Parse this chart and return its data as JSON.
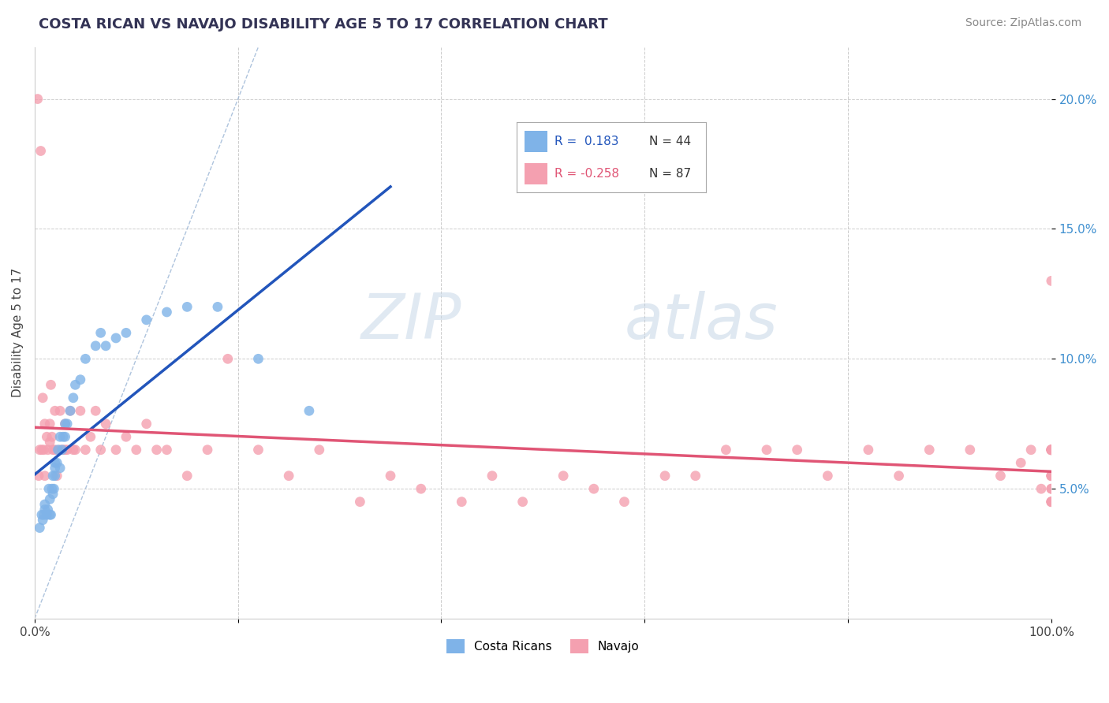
{
  "title": "COSTA RICAN VS NAVAJO DISABILITY AGE 5 TO 17 CORRELATION CHART",
  "source": "Source: ZipAtlas.com",
  "ylabel": "Disability Age 5 to 17",
  "xlim": [
    0.0,
    1.0
  ],
  "ylim": [
    0.0,
    0.22
  ],
  "cr_color": "#7fb3e8",
  "navajo_color": "#f4a0b0",
  "cr_line_color": "#2255bb",
  "navajo_line_color": "#e05575",
  "diagonal_color": "#9ab5d5",
  "watermark_zip": "ZIP",
  "watermark_atlas": "atlas",
  "legend_r1_val": "0.183",
  "legend_n1": "44",
  "legend_r2_val": "-0.258",
  "legend_n2": "87",
  "costa_ricans_x": [
    0.005,
    0.007,
    0.008,
    0.009,
    0.01,
    0.01,
    0.012,
    0.013,
    0.014,
    0.015,
    0.015,
    0.016,
    0.017,
    0.018,
    0.018,
    0.019,
    0.02,
    0.02,
    0.02,
    0.022,
    0.023,
    0.025,
    0.025,
    0.027,
    0.028,
    0.03,
    0.03,
    0.032,
    0.035,
    0.038,
    0.04,
    0.045,
    0.05,
    0.06,
    0.065,
    0.07,
    0.08,
    0.09,
    0.11,
    0.13,
    0.15,
    0.18,
    0.22,
    0.27
  ],
  "costa_ricans_y": [
    0.035,
    0.04,
    0.038,
    0.04,
    0.042,
    0.044,
    0.04,
    0.042,
    0.05,
    0.04,
    0.046,
    0.04,
    0.05,
    0.048,
    0.055,
    0.05,
    0.055,
    0.06,
    0.058,
    0.06,
    0.065,
    0.058,
    0.07,
    0.065,
    0.07,
    0.07,
    0.075,
    0.075,
    0.08,
    0.085,
    0.09,
    0.092,
    0.1,
    0.105,
    0.11,
    0.105,
    0.108,
    0.11,
    0.115,
    0.118,
    0.12,
    0.12,
    0.1,
    0.08
  ],
  "navajo_x": [
    0.003,
    0.004,
    0.005,
    0.006,
    0.007,
    0.008,
    0.009,
    0.01,
    0.01,
    0.012,
    0.013,
    0.015,
    0.015,
    0.016,
    0.017,
    0.018,
    0.02,
    0.02,
    0.022,
    0.025,
    0.025,
    0.028,
    0.03,
    0.03,
    0.032,
    0.035,
    0.038,
    0.04,
    0.045,
    0.05,
    0.055,
    0.06,
    0.065,
    0.07,
    0.08,
    0.09,
    0.1,
    0.11,
    0.12,
    0.13,
    0.15,
    0.17,
    0.19,
    0.22,
    0.25,
    0.28,
    0.32,
    0.35,
    0.38,
    0.42,
    0.45,
    0.48,
    0.52,
    0.55,
    0.58,
    0.62,
    0.65,
    0.68,
    0.72,
    0.75,
    0.78,
    0.82,
    0.85,
    0.88,
    0.92,
    0.95,
    0.97,
    0.98,
    0.99,
    1.0,
    1.0,
    1.0,
    1.0,
    1.0,
    1.0,
    1.0,
    1.0,
    1.0,
    1.0,
    1.0,
    1.0,
    1.0,
    1.0,
    1.0,
    1.0,
    1.0,
    1.0
  ],
  "navajo_y": [
    0.2,
    0.055,
    0.065,
    0.18,
    0.065,
    0.085,
    0.065,
    0.075,
    0.055,
    0.07,
    0.065,
    0.075,
    0.068,
    0.09,
    0.07,
    0.065,
    0.08,
    0.065,
    0.055,
    0.065,
    0.08,
    0.065,
    0.065,
    0.075,
    0.065,
    0.08,
    0.065,
    0.065,
    0.08,
    0.065,
    0.07,
    0.08,
    0.065,
    0.075,
    0.065,
    0.07,
    0.065,
    0.075,
    0.065,
    0.065,
    0.055,
    0.065,
    0.1,
    0.065,
    0.055,
    0.065,
    0.045,
    0.055,
    0.05,
    0.045,
    0.055,
    0.045,
    0.055,
    0.05,
    0.045,
    0.055,
    0.055,
    0.065,
    0.065,
    0.065,
    0.055,
    0.065,
    0.055,
    0.065,
    0.065,
    0.055,
    0.06,
    0.065,
    0.05,
    0.055,
    0.065,
    0.045,
    0.055,
    0.065,
    0.065,
    0.065,
    0.045,
    0.065,
    0.05,
    0.065,
    0.065,
    0.13,
    0.055,
    0.055,
    0.045,
    0.05,
    0.045
  ]
}
